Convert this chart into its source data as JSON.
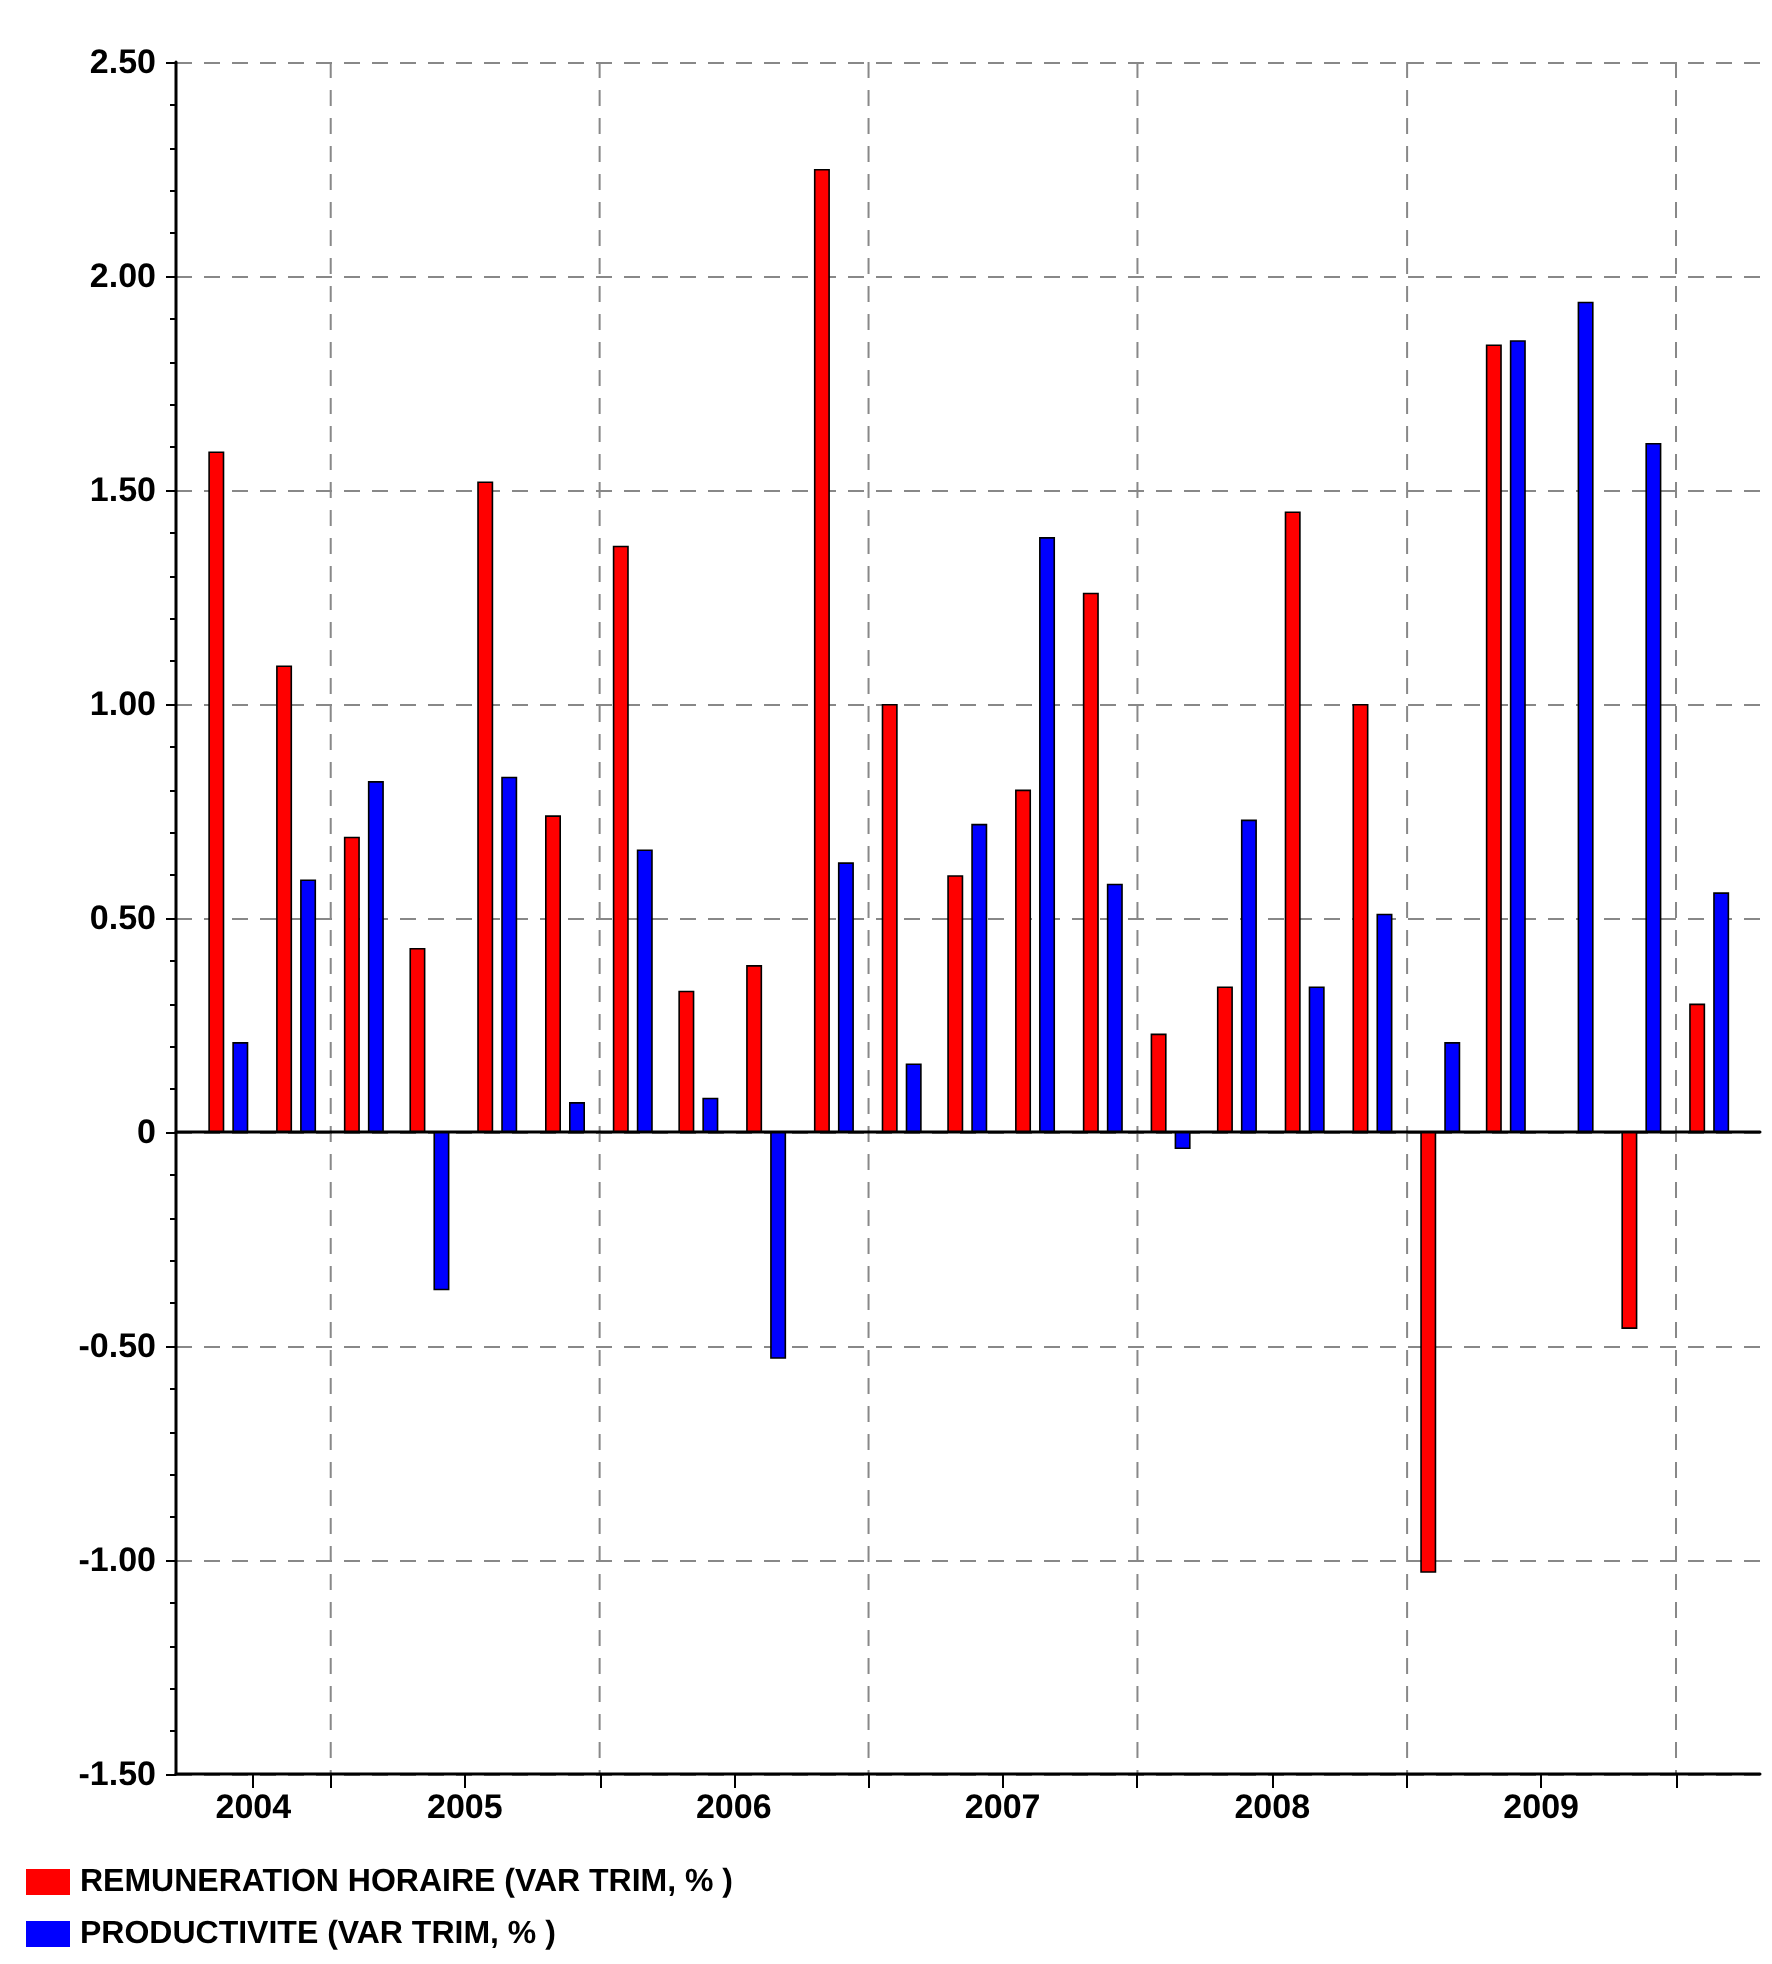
{
  "chart_data": {
    "type": "bar",
    "x": [
      "2004-08-15",
      "2004-11-15",
      "2005-02-15",
      "2005-05-15",
      "2005-08-15",
      "2005-11-15",
      "2006-02-15",
      "2006-05-15",
      "2006-08-15",
      "2006-11-15",
      "2007-02-15",
      "2007-05-15",
      "2007-08-15",
      "2007-11-15",
      "2008-02-15",
      "2008-05-15",
      "2008-08-15",
      "2008-11-15",
      "2009-02-15",
      "2009-05-15",
      "2009-08-15",
      "2009-11-15",
      "2010-02-15"
    ],
    "series": [
      {
        "name": "REMUNERATION HORAIRE (VAR TRIM, % )",
        "color": "#ff0000",
        "values": [
          1.59,
          1.09,
          0.69,
          0.43,
          1.52,
          0.74,
          1.37,
          0.33,
          0.39,
          2.25,
          1.0,
          0.6,
          0.8,
          1.26,
          0.23,
          0.34,
          1.45,
          1.0,
          -1.03,
          1.84,
          null,
          -0.46,
          0.3
        ]
      },
      {
        "name": "PRODUCTIVITE (VAR TRIM, % )",
        "color": "#0000ff",
        "values": [
          0.21,
          0.59,
          0.82,
          -0.37,
          0.83,
          0.07,
          0.66,
          0.08,
          -0.53,
          0.63,
          0.16,
          0.72,
          1.39,
          0.58,
          -0.04,
          0.73,
          0.34,
          0.51,
          0.21,
          1.85,
          1.94,
          1.61,
          0.56
        ]
      }
    ],
    "xlim": [
      "2004-06-05",
      "2010-04-25"
    ],
    "xticks": [
      {
        "value": "2004-09-18",
        "label": "2004"
      },
      {
        "value": "2005-01-01",
        "label": null
      },
      {
        "value": "2005-07-02",
        "label": "2005"
      },
      {
        "value": "2006-01-01",
        "label": null
      },
      {
        "value": "2006-07-02",
        "label": "2006"
      },
      {
        "value": "2007-01-01",
        "label": null
      },
      {
        "value": "2007-07-02",
        "label": "2007"
      },
      {
        "value": "2008-01-01",
        "label": null
      },
      {
        "value": "2008-07-02",
        "label": "2008"
      },
      {
        "value": "2009-01-01",
        "label": null
      },
      {
        "value": "2009-07-02",
        "label": "2009"
      },
      {
        "value": "2010-01-01",
        "label": null
      }
    ],
    "ylim": [
      -1.5,
      2.5
    ],
    "yticks": [
      {
        "value": -1.5,
        "label": "-1.50"
      },
      {
        "value": -1,
        "label": "-1.00"
      },
      {
        "value": -0.5,
        "label": "-0.50"
      },
      0,
      {
        "value": 0.5,
        "label": "0.50"
      },
      {
        "value": 1,
        "label": "1.00"
      },
      {
        "value": 1.5,
        "label": "1.50"
      },
      {
        "value": 2,
        "label": "2.00"
      },
      {
        "value": 2.5,
        "label": "2.50"
      }
    ],
    "grid": true,
    "legend": "bottom left"
  }
}
